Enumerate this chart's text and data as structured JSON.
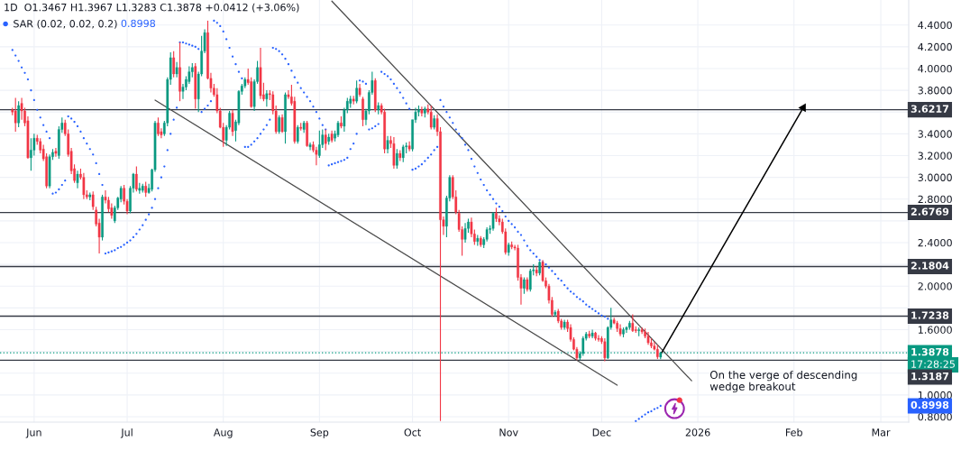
{
  "chart_data": {
    "type": "candlestick",
    "title": "1D  O1.3467 H1.3967 L1.3283 C1.3878 +0.0412 (+3.06%)",
    "x": [
      "2025-05-25",
      "2025-05-26",
      "2025-05-27",
      "2025-05-28",
      "2025-05-29",
      "2025-05-30",
      "2025-05-31",
      "2025-06-01",
      "2025-06-02",
      "2025-06-03",
      "2025-06-04",
      "2025-06-05",
      "2025-06-06",
      "2025-06-07",
      "2025-06-08",
      "2025-06-09",
      "2025-06-10",
      "2025-06-11",
      "2025-06-12",
      "2025-06-13",
      "2025-06-14",
      "2025-06-15",
      "2025-06-16",
      "2025-06-17",
      "2025-06-18",
      "2025-06-19",
      "2025-06-20",
      "2025-06-21",
      "2025-06-22",
      "2025-06-23",
      "2025-06-24",
      "2025-06-25",
      "2025-06-26",
      "2025-06-27",
      "2025-06-28",
      "2025-06-29",
      "2025-06-30",
      "2025-07-01",
      "2025-07-02",
      "2025-07-03",
      "2025-07-04",
      "2025-07-05",
      "2025-07-06",
      "2025-07-07",
      "2025-07-08",
      "2025-07-09",
      "2025-07-10",
      "2025-07-11",
      "2025-07-12",
      "2025-07-13",
      "2025-07-14",
      "2025-07-15",
      "2025-07-16",
      "2025-07-17",
      "2025-07-18",
      "2025-07-19",
      "2025-07-20",
      "2025-07-21",
      "2025-07-22",
      "2025-07-23",
      "2025-07-24",
      "2025-07-25",
      "2025-07-26",
      "2025-07-27",
      "2025-07-28",
      "2025-07-29",
      "2025-07-30",
      "2025-07-31",
      "2025-08-01",
      "2025-08-02",
      "2025-08-03",
      "2025-08-04",
      "2025-08-05",
      "2025-08-06",
      "2025-08-07",
      "2025-08-08",
      "2025-08-09",
      "2025-08-10",
      "2025-08-11",
      "2025-08-12",
      "2025-08-13",
      "2025-08-14",
      "2025-08-15",
      "2025-08-16",
      "2025-08-17",
      "2025-08-18",
      "2025-08-19",
      "2025-08-20",
      "2025-08-21",
      "2025-08-22",
      "2025-08-23",
      "2025-08-24",
      "2025-08-25",
      "2025-08-26",
      "2025-08-27",
      "2025-08-28",
      "2025-08-29",
      "2025-08-30",
      "2025-08-31",
      "2025-09-01",
      "2025-09-02",
      "2025-09-03",
      "2025-09-04",
      "2025-09-05",
      "2025-09-06",
      "2025-09-07",
      "2025-09-08",
      "2025-09-09",
      "2025-09-10",
      "2025-09-11",
      "2025-09-12",
      "2025-09-13",
      "2025-09-14",
      "2025-09-15",
      "2025-09-16",
      "2025-09-17",
      "2025-09-18",
      "2025-09-19",
      "2025-09-20",
      "2025-09-21",
      "2025-09-22",
      "2025-09-23",
      "2025-09-24",
      "2025-09-25",
      "2025-09-26",
      "2025-09-27",
      "2025-09-28",
      "2025-09-29",
      "2025-09-30",
      "2025-10-01",
      "2025-10-02",
      "2025-10-03",
      "2025-10-04",
      "2025-10-05",
      "2025-10-06",
      "2025-10-07",
      "2025-10-08",
      "2025-10-09",
      "2025-10-10",
      "2025-10-11",
      "2025-10-12",
      "2025-10-13",
      "2025-10-14",
      "2025-10-15",
      "2025-10-16",
      "2025-10-17",
      "2025-10-18",
      "2025-10-19",
      "2025-10-20",
      "2025-10-21",
      "2025-10-22",
      "2025-10-23",
      "2025-10-24",
      "2025-10-25",
      "2025-10-26",
      "2025-10-27",
      "2025-10-28",
      "2025-10-29",
      "2025-10-30",
      "2025-10-31",
      "2025-11-01",
      "2025-11-02",
      "2025-11-03",
      "2025-11-04",
      "2025-11-05",
      "2025-11-06",
      "2025-11-07",
      "2025-11-08",
      "2025-11-09",
      "2025-11-10",
      "2025-11-11",
      "2025-11-12",
      "2025-11-13",
      "2025-11-14",
      "2025-11-15",
      "2025-11-16",
      "2025-11-17",
      "2025-11-18",
      "2025-11-19",
      "2025-11-20",
      "2025-11-21",
      "2025-11-22",
      "2025-11-23",
      "2025-11-24",
      "2025-11-25",
      "2025-11-26",
      "2025-11-27",
      "2025-11-28",
      "2025-11-29",
      "2025-11-30",
      "2025-12-01",
      "2025-12-02",
      "2025-12-03",
      "2025-12-04",
      "2025-12-05",
      "2025-12-06",
      "2025-12-07",
      "2025-12-08",
      "2025-12-09",
      "2025-12-10",
      "2025-12-11",
      "2025-12-12",
      "2025-12-13",
      "2025-12-14",
      "2025-12-15",
      "2025-12-16",
      "2025-12-17",
      "2025-12-18",
      "2025-12-19",
      "2025-12-20"
    ],
    "ohlc": [
      [
        3.62,
        3.64,
        3.57,
        3.6
      ],
      [
        3.61,
        3.73,
        3.42,
        3.5
      ],
      [
        3.5,
        3.7,
        3.46,
        3.66
      ],
      [
        3.68,
        3.73,
        3.53,
        3.61
      ],
      [
        3.61,
        3.64,
        3.47,
        3.5
      ],
      [
        3.52,
        3.56,
        3.17,
        3.18
      ],
      [
        3.18,
        3.36,
        3.06,
        3.25
      ],
      [
        3.25,
        3.4,
        3.2,
        3.36
      ],
      [
        3.36,
        3.39,
        3.3,
        3.33
      ],
      [
        3.33,
        3.36,
        3.22,
        3.25
      ],
      [
        3.26,
        3.3,
        3.15,
        3.17
      ],
      [
        3.19,
        3.22,
        2.9,
        2.92
      ],
      [
        2.92,
        3.21,
        2.9,
        3.19
      ],
      [
        3.19,
        3.26,
        3.16,
        3.23
      ],
      [
        3.24,
        3.27,
        3.19,
        3.22
      ],
      [
        3.2,
        3.47,
        3.17,
        3.44
      ],
      [
        3.44,
        3.55,
        3.41,
        3.5
      ],
      [
        3.5,
        3.53,
        3.38,
        3.4
      ],
      [
        3.4,
        3.44,
        3.19,
        3.21
      ],
      [
        3.24,
        3.27,
        3.03,
        3.06
      ],
      [
        3.08,
        3.12,
        2.95,
        2.97
      ],
      [
        2.95,
        3.06,
        2.9,
        3.03
      ],
      [
        3.03,
        3.08,
        2.98,
        3.0
      ],
      [
        3.0,
        3.04,
        2.8,
        2.84
      ],
      [
        2.84,
        2.88,
        2.8,
        2.82
      ],
      [
        2.82,
        2.86,
        2.79,
        2.84
      ],
      [
        2.84,
        2.87,
        2.7,
        2.73
      ],
      [
        2.7,
        2.73,
        2.55,
        2.57
      ],
      [
        2.58,
        2.62,
        2.3,
        2.45
      ],
      [
        2.45,
        2.84,
        2.42,
        2.82
      ],
      [
        2.82,
        2.88,
        2.76,
        2.79
      ],
      [
        2.79,
        2.82,
        2.68,
        2.71
      ],
      [
        2.72,
        2.76,
        2.62,
        2.65
      ],
      [
        2.6,
        2.74,
        2.58,
        2.72
      ],
      [
        2.72,
        2.82,
        2.7,
        2.81
      ],
      [
        2.8,
        2.92,
        2.77,
        2.9
      ],
      [
        2.9,
        2.93,
        2.75,
        2.78
      ],
      [
        2.78,
        2.8,
        2.66,
        2.69
      ],
      [
        2.69,
        2.92,
        2.67,
        2.9
      ],
      [
        2.9,
        3.04,
        2.86,
        3.03
      ],
      [
        3.03,
        3.1,
        2.87,
        2.89
      ],
      [
        2.88,
        2.95,
        2.85,
        2.9
      ],
      [
        2.88,
        2.94,
        2.86,
        2.92
      ],
      [
        2.92,
        2.96,
        2.82,
        2.86
      ],
      [
        2.86,
        2.94,
        2.85,
        2.9
      ],
      [
        2.89,
        3.08,
        2.87,
        3.07
      ],
      [
        3.07,
        3.52,
        3.05,
        3.5
      ],
      [
        3.5,
        3.55,
        3.38,
        3.4
      ],
      [
        3.42,
        3.45,
        3.36,
        3.39
      ],
      [
        3.4,
        3.52,
        3.38,
        3.5
      ],
      [
        3.5,
        3.92,
        3.47,
        3.9
      ],
      [
        3.9,
        4.15,
        3.85,
        4.1
      ],
      [
        4.1,
        4.16,
        3.92,
        3.95
      ],
      [
        3.95,
        4.06,
        3.92,
        4.01
      ],
      [
        4.01,
        4.24,
        3.7,
        3.79
      ],
      [
        3.79,
        3.86,
        3.72,
        3.83
      ],
      [
        3.83,
        3.93,
        3.8,
        3.9
      ],
      [
        3.88,
        4.02,
        3.86,
        3.97
      ],
      [
        3.97,
        4.05,
        3.92,
        4.01
      ],
      [
        4.02,
        4.05,
        3.63,
        3.72
      ],
      [
        3.72,
        3.97,
        3.6,
        3.95
      ],
      [
        3.95,
        4.3,
        3.93,
        4.16
      ],
      [
        4.16,
        4.36,
        4.14,
        4.33
      ],
      [
        4.33,
        4.44,
        3.9,
        3.91
      ],
      [
        3.91,
        3.96,
        3.78,
        3.82
      ],
      [
        3.82,
        3.86,
        3.74,
        3.76
      ],
      [
        3.76,
        3.82,
        3.59,
        3.61
      ],
      [
        3.61,
        3.64,
        3.45,
        3.46
      ],
      [
        3.46,
        3.5,
        3.28,
        3.34
      ],
      [
        3.34,
        3.48,
        3.29,
        3.46
      ],
      [
        3.46,
        3.61,
        3.44,
        3.59
      ],
      [
        3.59,
        3.62,
        3.38,
        3.42
      ],
      [
        3.43,
        3.53,
        3.33,
        3.51
      ],
      [
        3.5,
        3.8,
        3.48,
        3.79
      ],
      [
        3.79,
        3.86,
        3.76,
        3.84
      ],
      [
        3.84,
        3.92,
        3.82,
        3.9
      ],
      [
        3.9,
        4.0,
        3.85,
        3.87
      ],
      [
        3.88,
        3.92,
        3.64,
        3.65
      ],
      [
        3.65,
        3.9,
        3.61,
        3.88
      ],
      [
        3.88,
        4.07,
        3.86,
        4.01
      ],
      [
        4.01,
        4.19,
        3.72,
        3.75
      ],
      [
        3.76,
        3.87,
        3.7,
        3.72
      ],
      [
        3.72,
        3.8,
        3.65,
        3.77
      ],
      [
        3.77,
        3.8,
        3.71,
        3.76
      ],
      [
        3.76,
        3.79,
        3.58,
        3.61
      ],
      [
        3.61,
        3.66,
        3.4,
        3.42
      ],
      [
        3.42,
        3.57,
        3.4,
        3.55
      ],
      [
        3.55,
        3.58,
        3.41,
        3.42
      ],
      [
        3.42,
        3.78,
        3.31,
        3.76
      ],
      [
        3.76,
        3.8,
        3.72,
        3.74
      ],
      [
        3.74,
        3.85,
        3.66,
        3.68
      ],
      [
        3.7,
        3.74,
        3.31,
        3.33
      ],
      [
        3.33,
        3.48,
        3.31,
        3.46
      ],
      [
        3.46,
        3.5,
        3.43,
        3.45
      ],
      [
        3.44,
        3.52,
        3.41,
        3.5
      ],
      [
        3.5,
        3.52,
        3.28,
        3.29
      ],
      [
        3.28,
        3.32,
        3.25,
        3.3
      ],
      [
        3.3,
        3.33,
        3.23,
        3.25
      ],
      [
        3.25,
        3.28,
        3.11,
        3.21
      ],
      [
        3.2,
        3.43,
        3.18,
        3.3
      ],
      [
        3.3,
        3.44,
        3.27,
        3.39
      ],
      [
        3.39,
        3.44,
        3.25,
        3.31
      ],
      [
        3.33,
        3.4,
        3.3,
        3.37
      ],
      [
        3.4,
        3.43,
        3.32,
        3.34
      ],
      [
        3.36,
        3.43,
        3.33,
        3.4
      ],
      [
        3.39,
        3.52,
        3.37,
        3.5
      ],
      [
        3.5,
        3.56,
        3.45,
        3.47
      ],
      [
        3.47,
        3.64,
        3.42,
        3.62
      ],
      [
        3.62,
        3.73,
        3.59,
        3.7
      ],
      [
        3.68,
        3.75,
        3.64,
        3.72
      ],
      [
        3.72,
        3.75,
        3.67,
        3.7
      ],
      [
        3.7,
        3.89,
        3.68,
        3.82
      ],
      [
        3.82,
        3.86,
        3.74,
        3.76
      ],
      [
        3.72,
        3.74,
        3.47,
        3.53
      ],
      [
        3.53,
        3.63,
        3.48,
        3.61
      ],
      [
        3.61,
        3.8,
        3.58,
        3.78
      ],
      [
        3.78,
        3.97,
        3.76,
        3.89
      ],
      [
        3.89,
        3.91,
        3.6,
        3.62
      ],
      [
        3.62,
        3.69,
        3.58,
        3.66
      ],
      [
        3.66,
        3.68,
        3.58,
        3.6
      ],
      [
        3.6,
        3.63,
        3.22,
        3.26
      ],
      [
        3.26,
        3.38,
        3.22,
        3.34
      ],
      [
        3.34,
        3.38,
        3.27,
        3.31
      ],
      [
        3.31,
        3.37,
        3.08,
        3.11
      ],
      [
        3.11,
        3.26,
        3.08,
        3.22
      ],
      [
        3.22,
        3.25,
        3.15,
        3.18
      ],
      [
        3.18,
        3.3,
        3.14,
        3.28
      ],
      [
        3.28,
        3.32,
        3.22,
        3.29
      ],
      [
        3.29,
        3.33,
        3.24,
        3.26
      ],
      [
        3.26,
        3.53,
        3.24,
        3.53
      ],
      [
        3.53,
        3.64,
        3.5,
        3.6
      ],
      [
        3.6,
        3.66,
        3.56,
        3.62
      ],
      [
        3.62,
        3.65,
        3.56,
        3.59
      ],
      [
        3.59,
        3.65,
        3.55,
        3.63
      ],
      [
        3.63,
        3.67,
        3.58,
        3.6
      ],
      [
        3.6,
        3.66,
        3.44,
        3.46
      ],
      [
        3.46,
        3.57,
        3.44,
        3.54
      ],
      [
        3.54,
        3.58,
        3.38,
        3.42
      ],
      [
        3.42,
        3.46,
        0.76,
        2.61
      ],
      [
        2.61,
        2.64,
        2.47,
        2.55
      ],
      [
        2.55,
        2.83,
        2.45,
        2.81
      ],
      [
        2.81,
        3.02,
        2.78,
        3.0
      ],
      [
        3.0,
        3.02,
        2.8,
        2.82
      ],
      [
        2.82,
        2.88,
        2.66,
        2.68
      ],
      [
        2.67,
        2.7,
        2.5,
        2.52
      ],
      [
        2.52,
        2.55,
        2.28,
        2.43
      ],
      [
        2.43,
        2.58,
        2.4,
        2.53
      ],
      [
        2.53,
        2.62,
        2.49,
        2.59
      ],
      [
        2.59,
        2.63,
        2.45,
        2.48
      ],
      [
        2.48,
        2.52,
        2.38,
        2.41
      ],
      [
        2.41,
        2.47,
        2.37,
        2.44
      ],
      [
        2.44,
        2.46,
        2.36,
        2.38
      ],
      [
        2.38,
        2.45,
        2.35,
        2.43
      ],
      [
        2.43,
        2.54,
        2.41,
        2.52
      ],
      [
        2.52,
        2.56,
        2.48,
        2.53
      ],
      [
        2.53,
        2.68,
        2.51,
        2.67
      ],
      [
        2.67,
        2.72,
        2.59,
        2.62
      ],
      [
        2.62,
        2.65,
        2.56,
        2.59
      ],
      [
        2.59,
        2.62,
        2.48,
        2.5
      ],
      [
        2.5,
        2.53,
        2.29,
        2.31
      ],
      [
        2.31,
        2.4,
        2.28,
        2.38
      ],
      [
        2.38,
        2.41,
        2.34,
        2.36
      ],
      [
        2.36,
        2.38,
        2.33,
        2.35
      ],
      [
        2.35,
        2.38,
        2.05,
        2.08
      ],
      [
        2.08,
        2.11,
        1.83,
        1.98
      ],
      [
        1.98,
        2.08,
        1.93,
        2.06
      ],
      [
        2.06,
        2.08,
        1.95,
        1.97
      ],
      [
        1.97,
        2.16,
        1.95,
        2.14
      ],
      [
        2.14,
        2.2,
        2.1,
        2.15
      ],
      [
        2.15,
        2.18,
        2.09,
        2.12
      ],
      [
        2.12,
        2.23,
        2.1,
        2.22
      ],
      [
        2.22,
        2.24,
        2.04,
        2.05
      ],
      [
        2.05,
        2.08,
        1.98,
        2.0
      ],
      [
        2.0,
        2.02,
        1.84,
        1.87
      ],
      [
        1.87,
        1.9,
        1.72,
        1.74
      ],
      [
        1.74,
        1.78,
        1.72,
        1.76
      ],
      [
        1.77,
        1.79,
        1.66,
        1.68
      ],
      [
        1.68,
        1.7,
        1.6,
        1.62
      ],
      [
        1.62,
        1.69,
        1.6,
        1.67
      ],
      [
        1.67,
        1.69,
        1.58,
        1.61
      ],
      [
        1.62,
        1.65,
        1.49,
        1.51
      ],
      [
        1.51,
        1.53,
        1.41,
        1.42
      ],
      [
        1.42,
        1.44,
        1.32,
        1.34
      ],
      [
        1.34,
        1.4,
        1.32,
        1.38
      ],
      [
        1.38,
        1.54,
        1.36,
        1.52
      ],
      [
        1.52,
        1.58,
        1.5,
        1.56
      ],
      [
        1.56,
        1.59,
        1.52,
        1.54
      ],
      [
        1.54,
        1.6,
        1.52,
        1.57
      ],
      [
        1.57,
        1.58,
        1.5,
        1.52
      ],
      [
        1.52,
        1.55,
        1.49,
        1.51
      ],
      [
        1.52,
        1.54,
        1.47,
        1.49
      ],
      [
        1.49,
        1.52,
        1.31,
        1.34
      ],
      [
        1.34,
        1.63,
        1.33,
        1.62
      ],
      [
        1.62,
        1.8,
        1.6,
        1.69
      ],
      [
        1.69,
        1.71,
        1.65,
        1.66
      ],
      [
        1.66,
        1.68,
        1.58,
        1.61
      ],
      [
        1.61,
        1.65,
        1.54,
        1.56
      ],
      [
        1.56,
        1.62,
        1.53,
        1.6
      ],
      [
        1.6,
        1.63,
        1.57,
        1.62
      ],
      [
        1.62,
        1.68,
        1.6,
        1.66
      ],
      [
        1.66,
        1.74,
        1.58,
        1.59
      ],
      [
        1.6,
        1.63,
        1.57,
        1.59
      ],
      [
        1.59,
        1.62,
        1.54,
        1.6
      ],
      [
        1.6,
        1.62,
        1.56,
        1.58
      ],
      [
        1.58,
        1.61,
        1.52,
        1.54
      ],
      [
        1.54,
        1.58,
        1.46,
        1.48
      ],
      [
        1.48,
        1.52,
        1.43,
        1.45
      ],
      [
        1.45,
        1.49,
        1.41,
        1.42
      ],
      [
        1.42,
        1.46,
        1.33,
        1.35
      ],
      [
        1.3467,
        1.3967,
        1.3283,
        1.3878
      ]
    ],
    "colors": [
      "#f23645",
      "#f23645",
      "#089981",
      "#f23645",
      "#f23645",
      "#f23645",
      "#089981",
      "#089981",
      "#f23645",
      "#f23645",
      "#f23645",
      "#f23645",
      "#089981",
      "#089981",
      "#f23645",
      "#089981",
      "#089981",
      "#f23645",
      "#f23645",
      "#f23645",
      "#f23645",
      "#089981",
      "#f23645",
      "#f23645",
      "#f23645",
      "#089981",
      "#f23645",
      "#f23645",
      "#f23645",
      "#089981",
      "#f23645",
      "#f23645",
      "#f23645",
      "#089981",
      "#089981",
      "#089981",
      "#f23645",
      "#f23645",
      "#089981",
      "#089981",
      "#f23645",
      "#089981",
      "#089981",
      "#f23645",
      "#089981",
      "#089981",
      "#089981",
      "#f23645",
      "#f23645",
      "#089981",
      "#089981",
      "#089981",
      "#f23645",
      "#089981",
      "#f23645",
      "#089981",
      "#089981",
      "#089981",
      "#089981",
      "#f23645",
      "#089981",
      "#089981",
      "#089981",
      "#f23645",
      "#f23645",
      "#f23645",
      "#f23645",
      "#f23645",
      "#f23645",
      "#089981",
      "#089981",
      "#f23645",
      "#089981",
      "#089981",
      "#089981",
      "#089981",
      "#f23645",
      "#f23645",
      "#089981",
      "#089981",
      "#f23645",
      "#f23645",
      "#089981",
      "#f23645",
      "#f23645",
      "#f23645",
      "#089981",
      "#f23645",
      "#089981",
      "#f23645",
      "#f23645",
      "#f23645",
      "#089981",
      "#f23645",
      "#089981",
      "#f23645",
      "#089981",
      "#f23645",
      "#f23645",
      "#089981",
      "#089981",
      "#f23645",
      "#089981",
      "#f23645",
      "#089981",
      "#089981",
      "#f23645",
      "#089981",
      "#089981",
      "#089981",
      "#f23645",
      "#089981",
      "#f23645",
      "#f23645",
      "#089981",
      "#089981",
      "#089981",
      "#f23645",
      "#089981",
      "#f23645",
      "#f23645",
      "#089981",
      "#f23645",
      "#f23645",
      "#089981",
      "#f23645",
      "#089981",
      "#089981",
      "#f23645",
      "#089981",
      "#089981",
      "#089981",
      "#f23645",
      "#089981",
      "#f23645",
      "#f23645",
      "#089981",
      "#f23645",
      "#f23645",
      "#f23645",
      "#089981",
      "#089981",
      "#f23645",
      "#f23645",
      "#f23645",
      "#f23645",
      "#089981",
      "#089981",
      "#f23645",
      "#f23645",
      "#089981",
      "#f23645",
      "#089981",
      "#089981",
      "#089981",
      "#089981",
      "#f23645",
      "#f23645",
      "#f23645",
      "#f23645",
      "#089981",
      "#f23645",
      "#f23645",
      "#f23645",
      "#f23645",
      "#089981",
      "#f23645",
      "#089981",
      "#089981",
      "#f23645",
      "#089981",
      "#f23645",
      "#f23645",
      "#f23645",
      "#f23645",
      "#089981",
      "#f23645",
      "#f23645",
      "#089981",
      "#f23645",
      "#f23645",
      "#f23645",
      "#f23645",
      "#089981",
      "#089981",
      "#089981",
      "#f23645",
      "#089981",
      "#f23645",
      "#f23645",
      "#f23645",
      "#f23645",
      "#089981",
      "#089981",
      "#f23645",
      "#f23645",
      "#f23645",
      "#089981",
      "#089981",
      "#089981",
      "#f23645",
      "#f23645",
      "#089981",
      "#f23645",
      "#f23645",
      "#f23645",
      "#f23645",
      "#f23645",
      "#f23645",
      "#089981"
    ],
    "series": [
      {
        "type": "scatter",
        "name": "SAR (0.02, 0.02, 0.2)",
        "color": "#2962ff",
        "values": [
          4.17,
          4.12,
          4.07,
          4.01,
          3.96,
          3.9,
          3.8,
          3.71,
          3.62,
          3.55,
          3.48,
          3.42,
          3.36,
          2.85,
          2.86,
          2.89,
          2.93,
          2.97,
          3.56,
          3.54,
          3.51,
          3.47,
          3.42,
          3.36,
          3.31,
          3.26,
          3.21,
          3.13,
          3.03,
          2.93,
          2.3,
          2.31,
          2.32,
          2.33,
          2.35,
          2.36,
          2.38,
          2.4,
          2.42,
          2.45,
          2.48,
          2.52,
          2.56,
          2.61,
          2.66,
          2.72,
          2.8,
          2.9,
          3.0,
          3.1,
          3.25,
          3.4,
          3.53,
          3.64,
          4.24,
          4.24,
          4.23,
          4.22,
          4.21,
          4.2,
          4.18,
          3.6,
          3.63,
          3.66,
          3.7,
          4.44,
          4.42,
          4.39,
          4.34,
          4.27,
          4.19,
          4.11,
          4.04,
          3.97,
          3.91,
          3.28,
          3.28,
          3.3,
          3.33,
          3.36,
          3.4,
          3.44,
          3.48,
          3.53,
          4.19,
          4.18,
          4.16,
          4.13,
          4.09,
          4.04,
          3.98,
          3.92,
          3.87,
          3.82,
          3.78,
          3.74,
          3.7,
          3.65,
          3.6,
          3.54,
          3.48,
          3.44,
          3.11,
          3.12,
          3.13,
          3.14,
          3.15,
          3.16,
          3.18,
          3.26,
          3.31,
          3.4,
          3.89,
          3.88,
          3.86,
          3.44,
          3.45,
          3.47,
          3.49,
          3.97,
          3.95,
          3.93,
          3.9,
          3.86,
          3.82,
          3.78,
          3.73,
          3.68,
          3.63,
          3.07,
          3.08,
          3.1,
          3.12,
          3.15,
          3.18,
          3.21,
          3.25,
          3.28,
          3.71,
          3.65,
          3.6,
          3.55,
          3.5,
          3.44,
          3.4,
          3.36,
          3.3,
          3.25,
          3.17,
          3.1,
          3.04,
          2.98,
          2.93,
          2.88,
          2.84,
          2.8,
          2.76,
          2.73,
          2.69,
          2.64,
          2.6,
          2.57,
          2.54,
          2.5,
          2.47,
          2.42,
          2.37,
          2.33,
          2.3,
          2.27,
          2.24,
          2.22,
          2.2,
          2.17,
          2.14,
          2.11,
          2.07,
          2.05,
          2.01,
          1.98,
          1.95,
          1.93,
          1.9,
          1.88,
          1.86,
          1.83,
          1.81,
          1.79,
          1.77,
          1.75,
          1.73,
          1.72,
          1.7,
          null,
          null,
          null,
          null,
          null,
          null,
          null,
          null,
          0.76,
          0.78,
          0.8,
          0.82,
          0.84,
          0.85,
          0.87,
          0.88,
          0.8998
        ]
      },
      {
        "type": "line",
        "x": [
          "2025-09-05",
          "2025-12-30"
        ],
        "values": [
          4.62,
          1.13
        ],
        "color": "#4a4a4a"
      },
      {
        "type": "line",
        "x": [
          "2025-07-10",
          "2025-12-06"
        ],
        "values": [
          3.71,
          1.09
        ],
        "color": "#4a4a4a"
      },
      {
        "type": "line",
        "x": [
          "2025-12-20",
          "2026-02-04"
        ],
        "values": [
          1.37,
          3.64
        ],
        "color": "#000000",
        "marker": "triangle"
      }
    ],
    "ref_lines": [
      {
        "axis": "y",
        "value": 3.6217,
        "label": "3.6217",
        "color": "#363a45"
      },
      {
        "axis": "y",
        "value": 2.6769,
        "label": "2.6769",
        "color": "#363a45"
      },
      {
        "axis": "y",
        "value": 2.1804,
        "label": "2.1804",
        "color": "#363a45"
      },
      {
        "axis": "y",
        "value": 1.7238,
        "label": "1.7238",
        "color": "#363a45"
      },
      {
        "axis": "y",
        "value": 1.3187,
        "label": "1.3187",
        "color": "#363a45"
      },
      {
        "axis": "y",
        "value": 1.3878,
        "label": "1.3878",
        "color": "#089981",
        "line_style": "dotted"
      }
    ],
    "annotations": [
      "0.8998",
      "0.8998",
      "17:28:25",
      "On the verge of descending\nwedge breakout"
    ],
    "xlim": [
      "2025-05-21",
      "2026-03-10"
    ],
    "xticks": [
      {
        "value": "2025-06-01",
        "label": "Jun"
      },
      {
        "value": "2025-07-01",
        "label": "Jul"
      },
      {
        "value": "2025-08-01",
        "label": "Aug"
      },
      {
        "value": "2025-09-01",
        "label": "Sep"
      },
      {
        "value": "2025-10-01",
        "label": "Oct"
      },
      {
        "value": "2025-11-01",
        "label": "Nov"
      },
      {
        "value": "2025-12-01",
        "label": "Dec"
      },
      {
        "value": "2026-01-01",
        "label": "2026"
      },
      {
        "value": "2026-02-01",
        "label": "Feb"
      },
      {
        "value": "2026-03-01",
        "label": "Mar"
      }
    ],
    "ylim": [
      0.75,
      4.63
    ],
    "yticks": [
      {
        "value": 0.8,
        "label": "0.8000"
      },
      {
        "value": 1.0,
        "label": "1.0000"
      },
      {
        "value": 1.2,
        "label": null
      },
      {
        "value": 1.4,
        "label": null
      },
      {
        "value": 1.6,
        "label": "1.6000"
      },
      {
        "value": 1.8,
        "label": null
      },
      {
        "value": 2.0,
        "label": "2.0000"
      },
      {
        "value": 2.2,
        "label": null
      },
      {
        "value": 2.4,
        "label": "2.4000"
      },
      {
        "value": 2.6,
        "label": null
      },
      {
        "value": 2.8,
        "label": "2.8000"
      },
      {
        "value": 3.0,
        "label": "3.0000"
      },
      {
        "value": 3.2,
        "label": "3.2000"
      },
      {
        "value": 3.4,
        "label": "3.4000"
      },
      {
        "value": 3.6,
        "label": null
      },
      {
        "value": 3.8,
        "label": "3.8000"
      },
      {
        "value": 4.0,
        "label": "4.0000"
      },
      {
        "value": 4.2,
        "label": "4.2000"
      },
      {
        "value": 4.4,
        "label": "4.4000"
      }
    ],
    "grid": true,
    "legend": "top left"
  }
}
